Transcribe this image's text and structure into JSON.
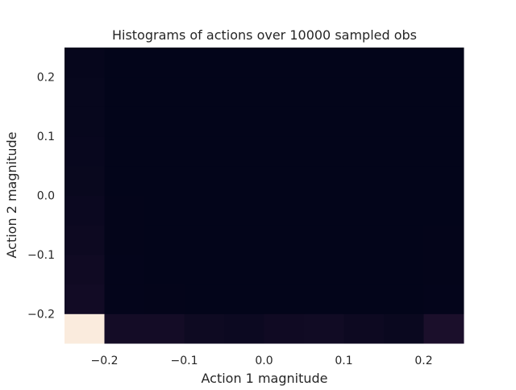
{
  "chart_data": {
    "type": "heatmap",
    "title": "Histograms of actions over 10000 sampled obs",
    "xlabel": "Action 1 magnitude",
    "ylabel": "Action 2 magnitude",
    "xlim": [
      -0.25,
      0.25
    ],
    "ylim": [
      -0.25,
      0.25
    ],
    "x_ticks": [
      -0.2,
      -0.1,
      0.0,
      0.1,
      0.2
    ],
    "y_ticks": [
      -0.2,
      -0.1,
      0.0,
      0.1,
      0.2
    ],
    "x_tick_labels": [
      "−0.2",
      "−0.1",
      "0.0",
      "0.1",
      "0.2"
    ],
    "y_tick_labels": [
      "−0.2",
      "−0.1",
      "0.0",
      "0.1",
      "0.2"
    ],
    "x_bin_edges": [
      -0.25,
      -0.2,
      -0.15,
      -0.1,
      -0.05,
      0.0,
      0.05,
      0.1,
      0.15,
      0.2,
      0.25
    ],
    "y_bin_edges": [
      -0.25,
      -0.2,
      -0.15,
      -0.1,
      -0.05,
      0.0,
      0.05,
      0.1,
      0.15,
      0.2,
      0.25
    ],
    "counts_note_rows": "counts[i][j]: i = y bin index from bottom (-0.25) to top, j = x bin index from left (-0.25) to right",
    "counts": [
      [
        2400,
        150,
        150,
        100,
        80,
        110,
        120,
        90,
        60,
        210
      ],
      [
        130,
        10,
        5,
        4,
        3,
        3,
        3,
        3,
        3,
        8
      ],
      [
        110,
        8,
        4,
        3,
        3,
        3,
        3,
        3,
        3,
        6
      ],
      [
        90,
        6,
        3,
        3,
        2,
        2,
        2,
        2,
        2,
        5
      ],
      [
        70,
        5,
        3,
        2,
        2,
        2,
        2,
        2,
        2,
        4
      ],
      [
        55,
        4,
        2,
        2,
        2,
        2,
        2,
        2,
        2,
        3
      ],
      [
        45,
        3,
        2,
        2,
        2,
        2,
        2,
        2,
        2,
        3
      ],
      [
        38,
        3,
        2,
        2,
        2,
        2,
        2,
        2,
        2,
        3
      ],
      [
        32,
        3,
        2,
        2,
        2,
        2,
        2,
        2,
        2,
        3
      ],
      [
        28,
        3,
        2,
        2,
        2,
        2,
        2,
        2,
        2,
        3
      ]
    ],
    "colormap": [
      "#03051a",
      "#2a1636",
      "#5a1e4e",
      "#8f1d5a",
      "#c9205a",
      "#ef5a4b",
      "#f59f7c",
      "#faebdd"
    ],
    "grid": false,
    "legend": "none"
  }
}
